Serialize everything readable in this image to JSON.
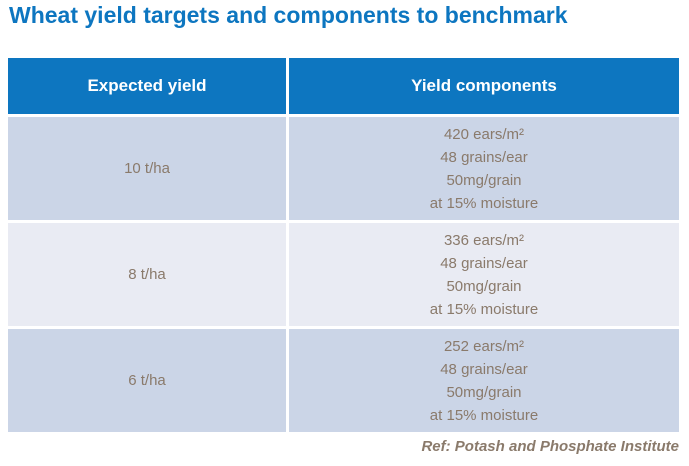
{
  "title": "Wheat yield targets and components to benchmark",
  "table": {
    "columns": [
      "Expected yield",
      "Yield components"
    ],
    "rows": [
      {
        "yield": "10 t/ha",
        "components": [
          "420 ears/m²",
          "48 grains/ear",
          "50mg/grain",
          "at 15% moisture"
        ]
      },
      {
        "yield": "8 t/ha",
        "components": [
          "336 ears/m²",
          "48 grains/ear",
          "50mg/grain",
          "at 15% moisture"
        ]
      },
      {
        "yield": "6 t/ha",
        "components": [
          "252 ears/m²",
          "48 grains/ear",
          "50mg/grain",
          "at 15% moisture"
        ]
      }
    ]
  },
  "reference": "Ref: Potash and Phosphate Institute",
  "colors": {
    "title_blue": "#0d76c0",
    "header_blue": "#0d76c0",
    "row_light_blue": "#cbd5e7",
    "row_pale": "#e9ebf3",
    "cell_text": "#8a7a6b"
  },
  "chart_data": {
    "type": "table",
    "title": "Wheat yield targets and components to benchmark",
    "columns": [
      "Expected yield",
      "Yield components"
    ],
    "rows": [
      {
        "expected_yield_t_ha": 10,
        "ears_per_m2": 420,
        "grains_per_ear": 48,
        "grain_weight_mg": 50,
        "moisture_pct": 15
      },
      {
        "expected_yield_t_ha": 8,
        "ears_per_m2": 336,
        "grains_per_ear": 48,
        "grain_weight_mg": 50,
        "moisture_pct": 15
      },
      {
        "expected_yield_t_ha": 6,
        "ears_per_m2": 252,
        "grains_per_ear": 48,
        "grain_weight_mg": 50,
        "moisture_pct": 15
      }
    ],
    "note": "Ref: Potash and Phosphate Institute"
  }
}
